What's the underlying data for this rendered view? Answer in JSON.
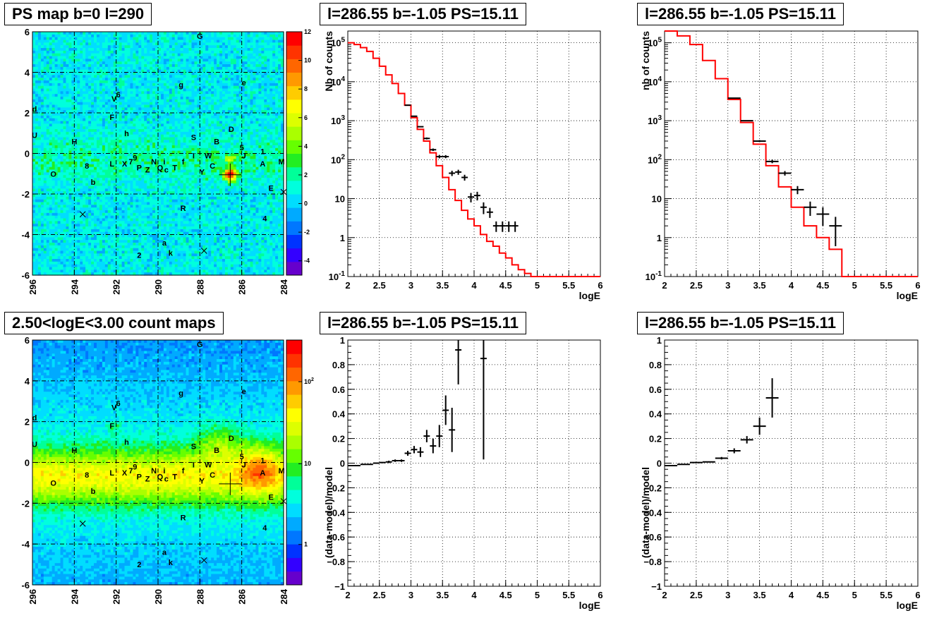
{
  "colors": {
    "data": "#000000",
    "model": "#ff0000",
    "grid": "#000000",
    "palette": [
      "#6600cc",
      "#3300ff",
      "#0033ff",
      "#0077ff",
      "#00aaff",
      "#00ddff",
      "#00ffdd",
      "#00ff99",
      "#22ee22",
      "#66ff00",
      "#aaff00",
      "#ddff00",
      "#ffff00",
      "#ffcc00",
      "#ff9900",
      "#ff6600",
      "#ff3300",
      "#ff0000"
    ]
  },
  "panels": {
    "psmap_title": "PS map b=0 l=290",
    "countmap_title": "2.50<logE<3.00 count maps",
    "spec_title_1": "l=286.55 b=-1.05 PS=15.11",
    "spec_title_2": "l=286.55 b=-1.05 PS=15.11",
    "res_title_1": "l=286.55 b=-1.05 PS=15.11",
    "res_title_2": "l=286.55 b=-1.05 PS=15.11"
  },
  "chart_data": [
    {
      "type": "heatmap",
      "title": "PS map b=0 l=290",
      "xlim": [
        296,
        284
      ],
      "ylim": [
        -6,
        6
      ],
      "x_ticks": [
        "296",
        "294",
        "292",
        "290",
        "288",
        "286",
        "284"
      ],
      "y_ticks": [
        "-6",
        "-4",
        "-2",
        "0",
        "2",
        "4",
        "6"
      ],
      "colorbar_ticks": [
        "-4",
        "-2",
        "0",
        "2",
        "4",
        "6",
        "8",
        "10",
        "12"
      ],
      "colorbar_range": [
        -5,
        12
      ],
      "hotspot": {
        "l": 286.55,
        "b": -1.05,
        "value": 12
      },
      "source_labels": [
        {
          "t": "G",
          "l": 288.0,
          "b": 5.8
        },
        {
          "t": "e",
          "l": 285.9,
          "b": 3.5
        },
        {
          "t": "g",
          "l": 288.9,
          "b": 3.4
        },
        {
          "t": "6",
          "l": 291.9,
          "b": 2.9
        },
        {
          "t": "V",
          "l": 292.1,
          "b": 2.7
        },
        {
          "t": "d",
          "l": 295.9,
          "b": 2.2
        },
        {
          "t": "F",
          "l": 292.2,
          "b": 1.8
        },
        {
          "t": "U",
          "l": 295.9,
          "b": 0.9
        },
        {
          "t": "h",
          "l": 291.5,
          "b": 1.0
        },
        {
          "t": "D",
          "l": 286.5,
          "b": 1.2
        },
        {
          "t": "S",
          "l": 288.3,
          "b": 0.8
        },
        {
          "t": "H",
          "l": 294.0,
          "b": 0.6
        },
        {
          "t": "B",
          "l": 287.2,
          "b": 0.6
        },
        {
          "t": "5",
          "l": 286.0,
          "b": 0.3
        },
        {
          "t": "1",
          "l": 285.0,
          "b": 0.1
        },
        {
          "t": "J",
          "l": 285.9,
          "b": -0.1
        },
        {
          "t": "W",
          "l": 287.6,
          "b": -0.1
        },
        {
          "t": "I",
          "l": 288.3,
          "b": -0.1
        },
        {
          "t": "9",
          "l": 291.1,
          "b": -0.2
        },
        {
          "t": "7",
          "l": 291.3,
          "b": -0.4
        },
        {
          "t": "f",
          "l": 288.8,
          "b": -0.4
        },
        {
          "t": "i",
          "l": 289.7,
          "b": -0.4
        },
        {
          "t": "N",
          "l": 290.2,
          "b": -0.4
        },
        {
          "t": "L",
          "l": 292.2,
          "b": -0.5
        },
        {
          "t": "X",
          "l": 291.6,
          "b": -0.5
        },
        {
          "t": "A",
          "l": 285.0,
          "b": -0.5
        },
        {
          "t": "M",
          "l": 284.1,
          "b": -0.4
        },
        {
          "t": "C",
          "l": 287.4,
          "b": -0.6
        },
        {
          "t": "8",
          "l": 293.4,
          "b": -0.6
        },
        {
          "t": "T",
          "l": 289.2,
          "b": -0.7
        },
        {
          "t": "P",
          "l": 290.9,
          "b": -0.7
        },
        {
          "t": "Q",
          "l": 289.9,
          "b": -0.7
        },
        {
          "t": "Z",
          "l": 290.5,
          "b": -0.8
        },
        {
          "t": "c",
          "l": 289.6,
          "b": -0.8
        },
        {
          "t": "Y",
          "l": 287.9,
          "b": -0.9
        },
        {
          "t": "O",
          "l": 295.0,
          "b": -1.0
        },
        {
          "t": "b",
          "l": 293.1,
          "b": -1.4
        },
        {
          "t": "E",
          "l": 284.6,
          "b": -1.7
        },
        {
          "t": "R",
          "l": 288.8,
          "b": -2.7
        },
        {
          "t": "4",
          "l": 284.9,
          "b": -3.2
        },
        {
          "t": "a",
          "l": 289.7,
          "b": -4.4
        },
        {
          "t": "2",
          "l": 290.9,
          "b": -5.0
        },
        {
          "t": "k",
          "l": 289.4,
          "b": -4.9
        }
      ],
      "x_markers": [
        {
          "l": 293.6,
          "b": -3.0
        },
        {
          "l": 287.8,
          "b": -4.8
        },
        {
          "l": 284.0,
          "b": -1.9
        }
      ]
    },
    {
      "type": "heatmap",
      "title": "2.50<logE<3.00 count maps",
      "xlim": [
        296,
        284
      ],
      "ylim": [
        -6,
        6
      ],
      "x_ticks": [
        "296",
        "294",
        "292",
        "290",
        "288",
        "286",
        "284"
      ],
      "y_ticks": [
        "-6",
        "-4",
        "-2",
        "0",
        "2",
        "4",
        "6"
      ],
      "colorbar_ticks": [
        "1",
        "10",
        "10^2"
      ],
      "log_color": true
    },
    {
      "type": "line",
      "title": "l=286.55 b=-1.05 PS=15.11",
      "xlabel": "logE",
      "ylabel": "Nb of counts",
      "xlim": [
        2,
        6
      ],
      "ylim": [
        0.1,
        200000
      ],
      "log_y": true,
      "x_ticks": [
        "2",
        "2.5",
        "3",
        "3.5",
        "4",
        "4.5",
        "5",
        "5.5",
        "6"
      ],
      "y_ticks": [
        "10^-1",
        "1",
        "10",
        "10^2",
        "10^3",
        "10^4",
        "10^5"
      ],
      "series": [
        {
          "kind": "model_step",
          "bin_width": 0.1,
          "x": [
            2.0,
            2.1,
            2.2,
            2.3,
            2.4,
            2.5,
            2.6,
            2.7,
            2.8,
            2.9,
            3.0,
            3.1,
            3.2,
            3.3,
            3.4,
            3.5,
            3.6,
            3.7,
            3.8,
            3.9,
            4.0,
            4.1,
            4.2,
            4.3,
            4.4,
            4.5,
            4.6,
            4.7,
            4.8,
            4.9,
            5.0,
            5.1
          ],
          "y": [
            100000,
            90000,
            75000,
            60000,
            40000,
            25000,
            15000,
            9000,
            5000,
            2500,
            1200,
            600,
            300,
            150,
            70,
            35,
            17,
            9,
            5,
            3,
            2,
            1.2,
            0.8,
            0.6,
            0.4,
            0.3,
            0.2,
            0.15,
            0.12,
            0.1,
            0.1,
            0.1
          ]
        },
        {
          "kind": "data",
          "x": [
            2.95,
            3.05,
            3.15,
            3.25,
            3.35,
            3.45,
            3.55,
            3.65,
            3.75,
            3.85,
            3.95,
            4.05,
            4.15,
            4.25,
            4.35,
            4.45,
            4.55,
            4.65
          ],
          "y": [
            2500,
            1300,
            700,
            350,
            180,
            120,
            120,
            45,
            48,
            35,
            11,
            12,
            6,
            4.5,
            2,
            2,
            2,
            2
          ],
          "err_lo": [
            2450,
            1260,
            672,
            330,
            167,
            108,
            109,
            38,
            41,
            29,
            8,
            9,
            4,
            3.2,
            1.4,
            1.4,
            1.4,
            1.4
          ],
          "err_hi": [
            2550,
            1340,
            728,
            370,
            193,
            132,
            131,
            52,
            55,
            41,
            14,
            15,
            8,
            5.8,
            2.6,
            2.6,
            2.6,
            2.6
          ]
        }
      ]
    },
    {
      "type": "line",
      "title": "l=286.55 b=-1.05 PS=15.11",
      "xlabel": "logE",
      "ylabel": "nb of counts",
      "xlim": [
        2,
        6
      ],
      "ylim": [
        0.1,
        200000
      ],
      "log_y": true,
      "x_ticks": [
        "2",
        "2.5",
        "3",
        "3.5",
        "4",
        "4.5",
        "5",
        "5.5",
        "6"
      ],
      "y_ticks": [
        "10^-1",
        "1",
        "10",
        "10^2",
        "10^3",
        "10^4",
        "10^5"
      ],
      "series": [
        {
          "kind": "model_step",
          "bin_width": 0.2,
          "x": [
            2.0,
            2.2,
            2.4,
            2.6,
            2.8,
            3.0,
            3.2,
            3.4,
            3.6,
            3.8,
            4.0,
            4.2,
            4.4,
            4.6,
            4.8,
            5.0
          ],
          "y": [
            200000,
            150000,
            90000,
            35000,
            12000,
            3500,
            900,
            250,
            70,
            20,
            6,
            2,
            1,
            0.5,
            0.1,
            0.1
          ]
        },
        {
          "kind": "data",
          "x": [
            3.1,
            3.3,
            3.5,
            3.7,
            3.9,
            4.1,
            4.3,
            4.5,
            4.7
          ],
          "y": [
            3800,
            1000,
            300,
            90,
            45,
            17,
            6,
            4,
            2
          ],
          "err_lo": [
            3738,
            968,
            283,
            81,
            39,
            13,
            3.6,
            2,
            0.6
          ],
          "err_hi": [
            3862,
            1032,
            317,
            99,
            51,
            21,
            8.4,
            6,
            3.4
          ]
        }
      ]
    },
    {
      "type": "scatter",
      "title": "l=286.55 b=-1.05 PS=15.11",
      "xlabel": "logE",
      "ylabel": "(data-model)/model",
      "xlim": [
        2,
        6
      ],
      "ylim": [
        -1,
        1
      ],
      "x_ticks": [
        "2",
        "2.5",
        "3",
        "3.5",
        "4",
        "4.5",
        "5",
        "5.5",
        "6"
      ],
      "y_ticks": [
        "−1",
        "−0.8",
        "−0.6",
        "−0.4",
        "−0.2",
        "0",
        "0.2",
        "0.4",
        "0.6",
        "0.8",
        "1"
      ],
      "bin_width": 0.1,
      "x": [
        2.05,
        2.15,
        2.25,
        2.35,
        2.45,
        2.55,
        2.65,
        2.75,
        2.85,
        2.95,
        3.05,
        3.15,
        3.25,
        3.35,
        3.45,
        3.55,
        3.65,
        3.75,
        4.15
      ],
      "y": [
        -0.02,
        -0.02,
        -0.01,
        -0.01,
        0,
        0.005,
        0.01,
        0.02,
        0.02,
        0.08,
        0.11,
        0.09,
        0.22,
        0.14,
        0.22,
        0.43,
        0.27,
        0.92,
        0.85
      ],
      "err": [
        0.005,
        0.005,
        0.005,
        0.005,
        0.005,
        0.005,
        0.01,
        0.01,
        0.01,
        0.02,
        0.03,
        0.04,
        0.05,
        0.06,
        0.09,
        0.12,
        0.18,
        0.28,
        0.82
      ]
    },
    {
      "type": "scatter",
      "title": "l=286.55 b=-1.05 PS=15.11",
      "xlabel": "logE",
      "ylabel": "(data-model)/model",
      "xlim": [
        2,
        6
      ],
      "ylim": [
        -1,
        1
      ],
      "x_ticks": [
        "2",
        "2.5",
        "3",
        "3.5",
        "4",
        "4.5",
        "5",
        "5.5",
        "6"
      ],
      "y_ticks": [
        "−1",
        "−0.8",
        "−0.6",
        "−0.4",
        "−0.2",
        "0",
        "0.2",
        "0.4",
        "0.6",
        "0.8",
        "1"
      ],
      "bin_width": 0.2,
      "x": [
        2.1,
        2.3,
        2.5,
        2.7,
        2.9,
        3.1,
        3.3,
        3.5,
        3.7
      ],
      "y": [
        -0.02,
        -0.01,
        0.005,
        0.01,
        0.04,
        0.1,
        0.19,
        0.3,
        0.53
      ],
      "err": [
        0.005,
        0.005,
        0.005,
        0.005,
        0.01,
        0.02,
        0.03,
        0.07,
        0.16
      ]
    }
  ]
}
